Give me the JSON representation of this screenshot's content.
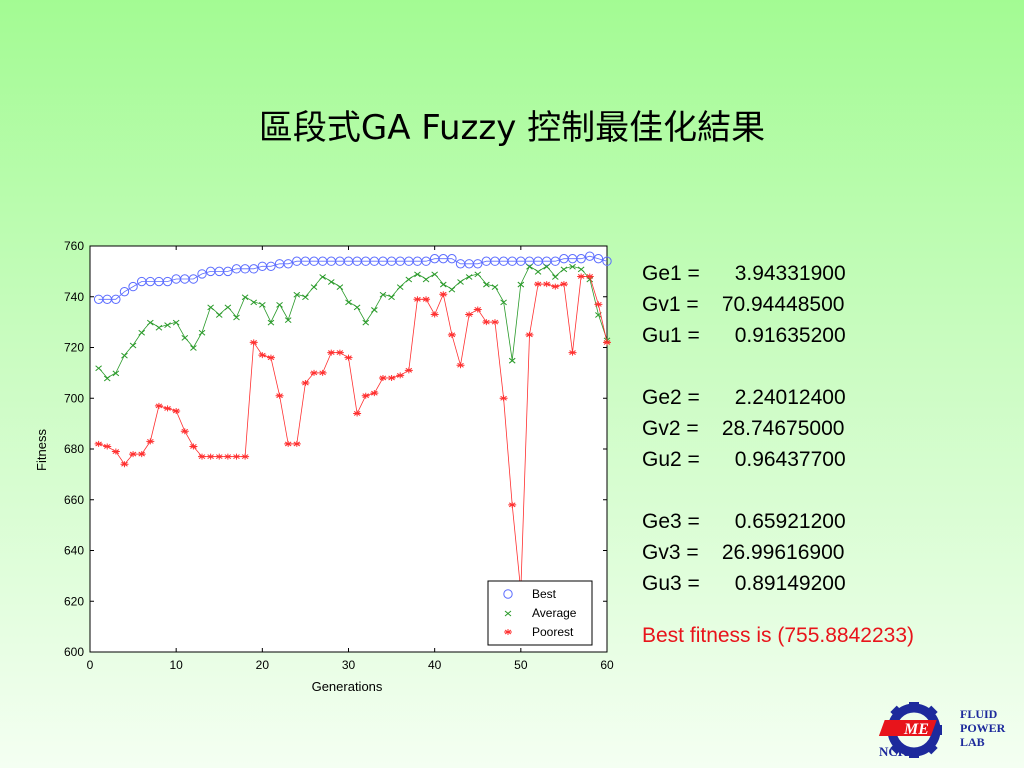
{
  "slide": {
    "title": "區段式GA Fuzzy 控制最佳化結果"
  },
  "params": [
    {
      "label": "Ge1",
      "value": "3.94331900"
    },
    {
      "label": "Gv1",
      "value": "70.94448500"
    },
    {
      "label": "Gu1",
      "value": "0.91635200"
    },
    {
      "label": "Ge2",
      "value": "2.24012400"
    },
    {
      "label": "Gv2",
      "value": "28.74675000"
    },
    {
      "label": "Gu2",
      "value": "0.96437700"
    },
    {
      "label": "Ge3",
      "value": "0.65921200"
    },
    {
      "label": "Gv3",
      "value": "26.99616900"
    },
    {
      "label": "Gu3",
      "value": "0.89149200"
    }
  ],
  "best_fitness": "Best fitness is (755.8842233)",
  "logo": {
    "lines": [
      "FLUID",
      "POWER",
      "LAB"
    ],
    "badge": "ME",
    "org": "NCKU"
  },
  "colors": {
    "best": "#5b6cff",
    "average": "#2a9a2a",
    "poorest": "#ff3030",
    "highlight": "#e8141b",
    "logo_blue": "#1d2a9c"
  },
  "chart_data": {
    "type": "line",
    "title": "",
    "xlabel": "Generations",
    "ylabel": "Fitness",
    "xlim": [
      0,
      60
    ],
    "ylim": [
      600,
      760
    ],
    "xticks": [
      "0",
      "10",
      "20",
      "30",
      "40",
      "50",
      "60"
    ],
    "yticks": [
      "600",
      "620",
      "640",
      "660",
      "680",
      "700",
      "720",
      "740",
      "760"
    ],
    "grid": false,
    "legend": "bottom-right",
    "x": [
      1,
      2,
      3,
      4,
      5,
      6,
      7,
      8,
      9,
      10,
      11,
      12,
      13,
      14,
      15,
      16,
      17,
      18,
      19,
      20,
      21,
      22,
      23,
      24,
      25,
      26,
      27,
      28,
      29,
      30,
      31,
      32,
      33,
      34,
      35,
      36,
      37,
      38,
      39,
      40,
      41,
      42,
      43,
      44,
      45,
      46,
      47,
      48,
      49,
      50,
      51,
      52,
      53,
      54,
      55,
      56,
      57,
      58,
      59,
      60
    ],
    "series": [
      {
        "name": "Best",
        "marker": "circle",
        "values": [
          739,
          739,
          739,
          742,
          744,
          746,
          746,
          746,
          746,
          747,
          747,
          747,
          749,
          750,
          750,
          750,
          751,
          751,
          751,
          752,
          752,
          753,
          753,
          754,
          754,
          754,
          754,
          754,
          754,
          754,
          754,
          754,
          754,
          754,
          754,
          754,
          754,
          754,
          754,
          755,
          755,
          755,
          753,
          753,
          753,
          754,
          754,
          754,
          754,
          754,
          754,
          754,
          754,
          754,
          755,
          755,
          755,
          756,
          755,
          754
        ]
      },
      {
        "name": "Average",
        "marker": "x",
        "values": [
          712,
          708,
          710,
          717,
          721,
          726,
          730,
          728,
          729,
          730,
          724,
          720,
          726,
          736,
          733,
          736,
          732,
          740,
          738,
          737,
          730,
          737,
          731,
          741,
          740,
          744,
          748,
          746,
          744,
          738,
          736,
          730,
          735,
          741,
          740,
          744,
          747,
          749,
          747,
          749,
          745,
          743,
          746,
          748,
          749,
          745,
          744,
          738,
          715,
          745,
          752,
          750,
          752,
          748,
          751,
          752,
          751,
          747,
          733,
          723
        ]
      },
      {
        "name": "Poorest",
        "marker": "star",
        "values": [
          682,
          681,
          679,
          674,
          678,
          678,
          683,
          697,
          696,
          695,
          687,
          681,
          677,
          677,
          677,
          677,
          677,
          677,
          722,
          717,
          716,
          701,
          682,
          682,
          706,
          710,
          710,
          718,
          718,
          716,
          694,
          701,
          702,
          708,
          708,
          709,
          711,
          739,
          739,
          733,
          741,
          725,
          713,
          733,
          735,
          730,
          730,
          700,
          658,
          624,
          725,
          745,
          745,
          744,
          745,
          718,
          748,
          748,
          737,
          722
        ]
      }
    ],
    "poorest_tail": [
      695,
      694
    ]
  }
}
